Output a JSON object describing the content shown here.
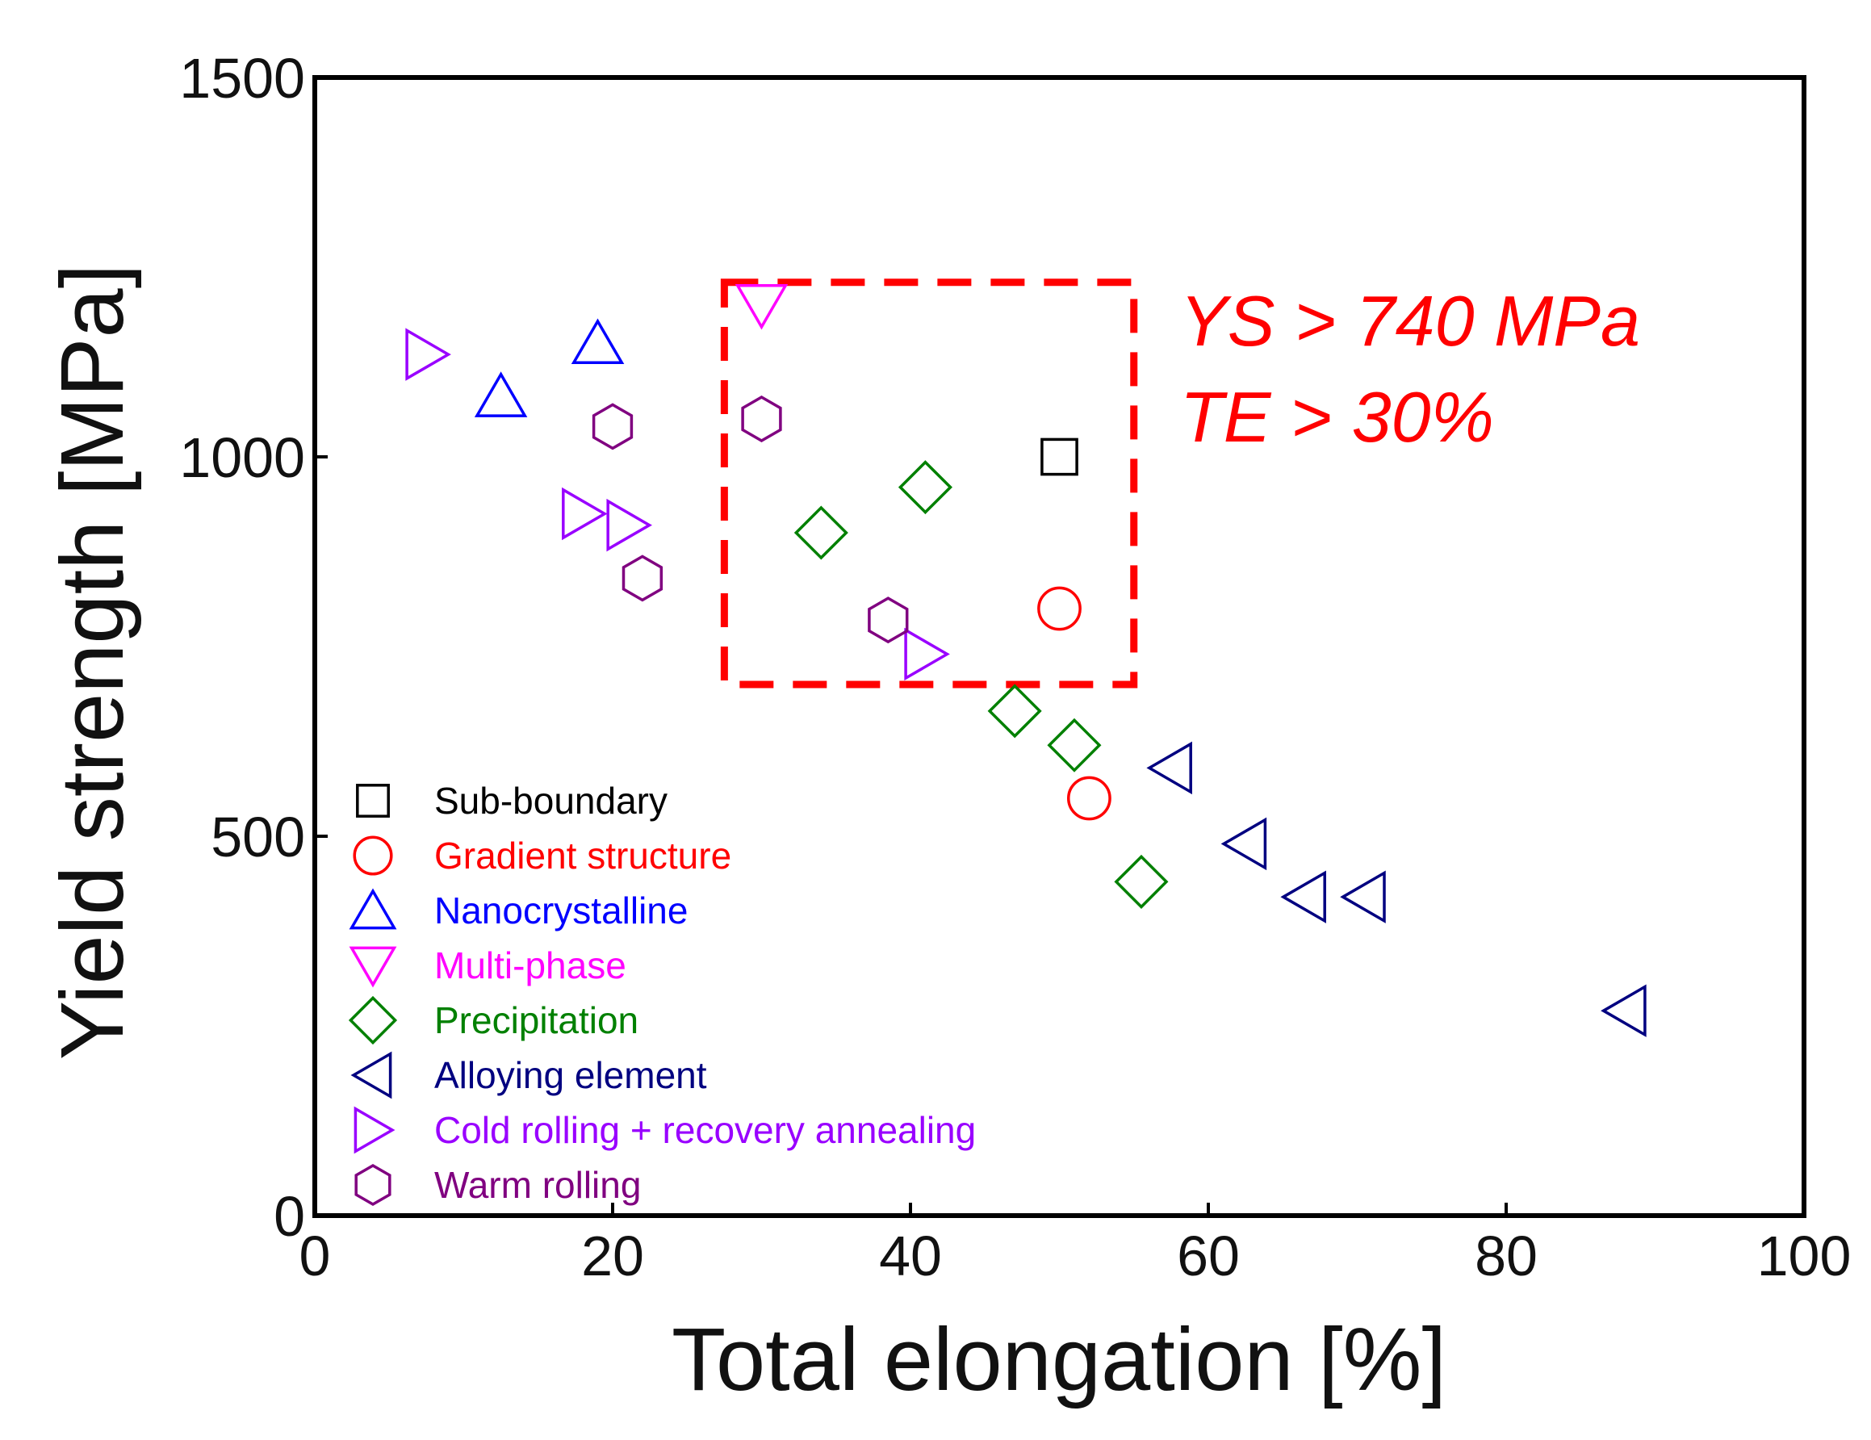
{
  "chart_data": {
    "type": "scatter",
    "title": "",
    "xlabel": "Total elongation [%]",
    "ylabel": "Yield strength [MPa]",
    "xlim": [
      0,
      100
    ],
    "ylim": [
      0,
      1500
    ],
    "x_ticks": [
      0,
      20,
      40,
      60,
      80,
      100
    ],
    "y_ticks": [
      0,
      500,
      1000,
      1500
    ],
    "legend_position": "bottom-left",
    "series": [
      {
        "name": "Sub-boundary",
        "marker": "square",
        "color": "#000000",
        "points": [
          [
            50,
            1000
          ]
        ]
      },
      {
        "name": "Gradient structure",
        "marker": "circle",
        "color": "#ff0000",
        "points": [
          [
            50,
            800
          ],
          [
            52,
            550
          ]
        ]
      },
      {
        "name": "Nanocrystalline",
        "marker": "triangle-up",
        "color": "#0000ff",
        "points": [
          [
            19,
            1150
          ],
          [
            12.5,
            1080
          ]
        ]
      },
      {
        "name": "Multi-phase",
        "marker": "triangle-down",
        "color": "#ff00ff",
        "points": [
          [
            30,
            1200
          ]
        ]
      },
      {
        "name": "Precipitation",
        "marker": "diamond",
        "color": "#008000",
        "points": [
          [
            41,
            960
          ],
          [
            34,
            900
          ],
          [
            47,
            665
          ],
          [
            51,
            620
          ],
          [
            55.5,
            440
          ]
        ]
      },
      {
        "name": "Alloying element",
        "marker": "triangle-left",
        "color": "#000080",
        "points": [
          [
            57.5,
            590
          ],
          [
            62.5,
            490
          ],
          [
            66.5,
            420
          ],
          [
            70.5,
            420
          ],
          [
            88,
            270
          ]
        ]
      },
      {
        "name": "Cold rolling + recovery annealing",
        "marker": "triangle-right",
        "color": "#9900ff",
        "points": [
          [
            7.5,
            1135
          ],
          [
            18,
            925
          ],
          [
            21,
            910
          ],
          [
            41,
            740
          ]
        ]
      },
      {
        "name": "Warm rolling",
        "marker": "hexagon",
        "color": "#800080",
        "points": [
          [
            20,
            1040
          ],
          [
            30,
            1050
          ],
          [
            22,
            840
          ],
          [
            38.5,
            785
          ]
        ]
      }
    ],
    "annotations": {
      "region": {
        "x_min": 27.5,
        "x_max": 55,
        "y_min": 700,
        "y_max": 1230,
        "color": "#ff0000"
      },
      "lines": [
        "YS > 740 MPa",
        "TE > 30%"
      ]
    }
  }
}
